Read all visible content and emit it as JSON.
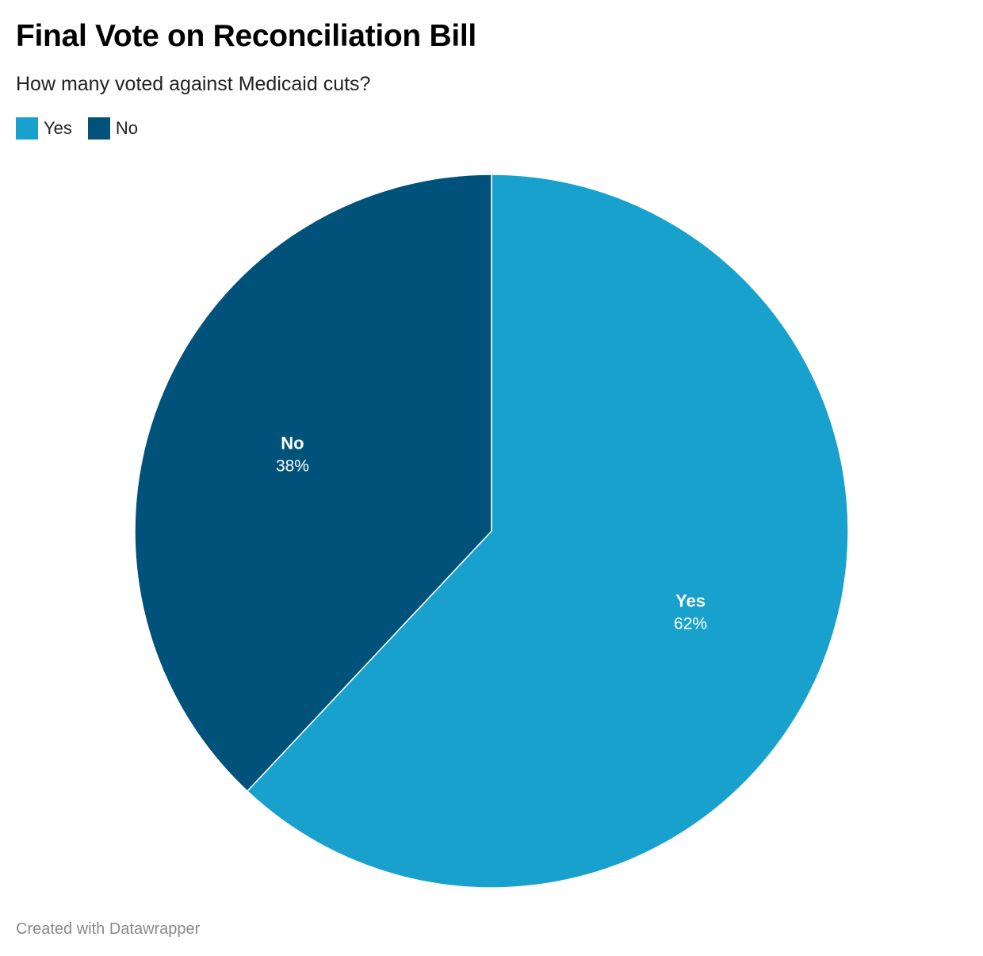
{
  "chart_data": {
    "type": "pie",
    "title": "Final Vote on Reconciliation Bill",
    "subtitle": "How many voted against Medicaid cuts?",
    "legend_position": "top-left",
    "slices": [
      {
        "label": "Yes",
        "value": 62,
        "value_label": "62%",
        "color": "#19a1cd"
      },
      {
        "label": "No",
        "value": 38,
        "value_label": "38%",
        "color": "#01527b"
      }
    ],
    "legend": [
      {
        "label": "Yes",
        "color": "#19a1cd"
      },
      {
        "label": "No",
        "color": "#01527b"
      }
    ],
    "footer": "Created with Datawrapper"
  }
}
